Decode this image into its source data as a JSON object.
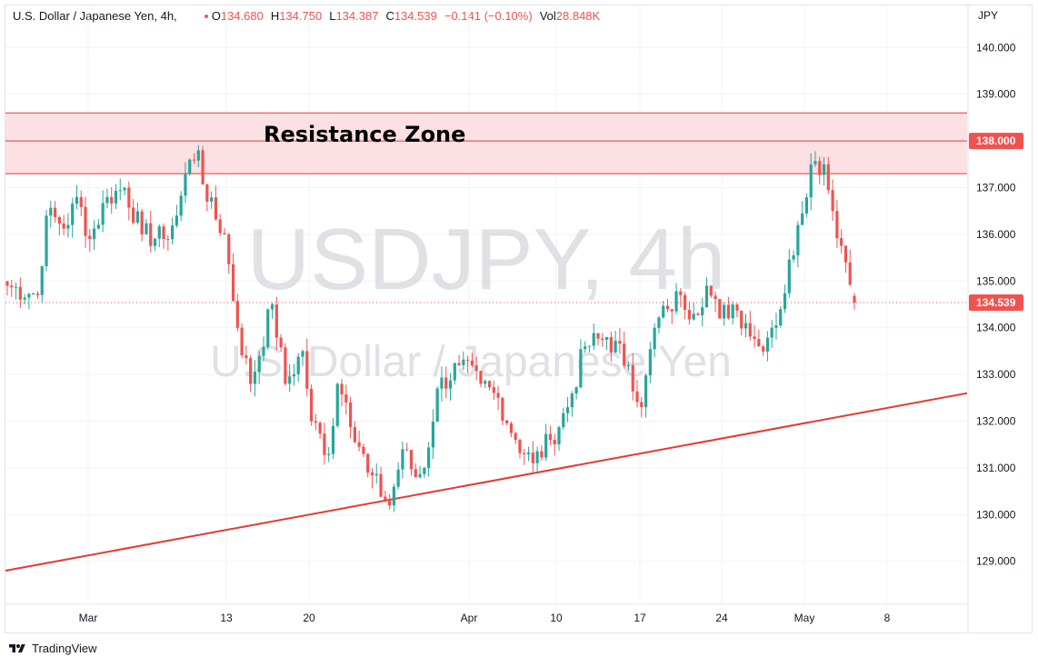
{
  "header": {
    "symbol": "U.S. Dollar / Japanese Yen, 4h,",
    "open_label": "O",
    "open": "134.680",
    "high_label": "H",
    "high": "134.750",
    "low_label": "L",
    "low": "134.387",
    "close_label": "C",
    "close": "134.539",
    "change": "−0.141 (−0.10%)",
    "vol_label": "Vol",
    "vol": "28.848K"
  },
  "watermark": {
    "line1": "USDJPY, 4h",
    "line2": "U.S. Dollar / Japanese Yen"
  },
  "annotation": {
    "zone_label": "Resistance Zone"
  },
  "price_axis": {
    "currency": "JPY",
    "ticks": [
      "140.000",
      "139.000",
      "138.000",
      "137.000",
      "136.000",
      "135.000",
      "134.000",
      "133.000",
      "132.000",
      "131.000",
      "130.000",
      "129.000"
    ],
    "current_price": "134.539",
    "zone_level": "138.000"
  },
  "time_axis": {
    "ticks": [
      "Mar",
      "13",
      "20",
      "Apr",
      "10",
      "17",
      "24",
      "May",
      "8"
    ]
  },
  "footer": {
    "brand": "TradingView"
  },
  "colors": {
    "up": "#26a69a",
    "down": "#ef5350",
    "zone_fill": "#fde0e3",
    "zone_line": "#e53935",
    "trend": "#e53935"
  },
  "chart_data": {
    "type": "candlestick",
    "symbol": "USDJPY",
    "interval": "4h",
    "y_range": [
      128.1,
      140.9
    ],
    "x_ticks": [
      "Mar",
      "13",
      "20",
      "Apr",
      "10",
      "17",
      "24",
      "May",
      "8"
    ],
    "resistance_zone": {
      "top": 138.6,
      "mid": 138.0,
      "bottom": 137.3
    },
    "trendline": {
      "start": [
        "Feb 22",
        128.8
      ],
      "end": [
        "May 12",
        132.6
      ]
    },
    "last": {
      "open": 134.68,
      "high": 134.75,
      "low": 134.387,
      "close": 134.539
    },
    "anchors": [
      [
        0,
        134.9
      ],
      [
        7,
        134.7
      ],
      [
        9,
        136.4
      ],
      [
        14,
        136.2
      ],
      [
        16,
        136.8
      ],
      [
        19,
        135.9
      ],
      [
        23,
        136.8
      ],
      [
        27,
        137.0
      ],
      [
        31,
        136.0
      ],
      [
        36,
        135.9
      ],
      [
        39,
        136.4
      ],
      [
        42,
        137.6
      ],
      [
        44,
        137.8
      ],
      [
        46,
        136.7
      ],
      [
        50,
        136.0
      ],
      [
        53,
        134.0
      ],
      [
        56,
        132.8
      ],
      [
        61,
        134.5
      ],
      [
        64,
        132.8
      ],
      [
        68,
        133.5
      ],
      [
        70,
        132.0
      ],
      [
        74,
        131.3
      ],
      [
        76,
        132.8
      ],
      [
        78,
        132.4
      ],
      [
        83,
        130.9
      ],
      [
        88,
        130.2
      ],
      [
        91,
        131.4
      ],
      [
        94,
        130.8
      ],
      [
        96,
        131.0
      ],
      [
        99,
        132.7
      ],
      [
        104,
        133.2
      ],
      [
        109,
        132.8
      ],
      [
        113,
        132.5
      ],
      [
        117,
        131.6
      ],
      [
        121,
        131.1
      ],
      [
        125,
        131.6
      ],
      [
        129,
        132.3
      ],
      [
        133,
        133.6
      ],
      [
        138,
        133.8
      ],
      [
        143,
        133.2
      ],
      [
        146,
        132.3
      ],
      [
        149,
        134.0
      ],
      [
        152,
        134.4
      ],
      [
        155,
        134.7
      ],
      [
        158,
        134.3
      ],
      [
        161,
        134.9
      ],
      [
        164,
        134.2
      ],
      [
        167,
        134.5
      ],
      [
        170,
        134.1
      ],
      [
        173,
        133.6
      ],
      [
        176,
        134.0
      ],
      [
        178,
        134.4
      ],
      [
        182,
        136.2
      ],
      [
        185,
        137.5
      ],
      [
        188,
        137.5
      ],
      [
        190,
        136.5
      ],
      [
        193,
        135.4
      ],
      [
        195,
        134.54
      ]
    ]
  }
}
